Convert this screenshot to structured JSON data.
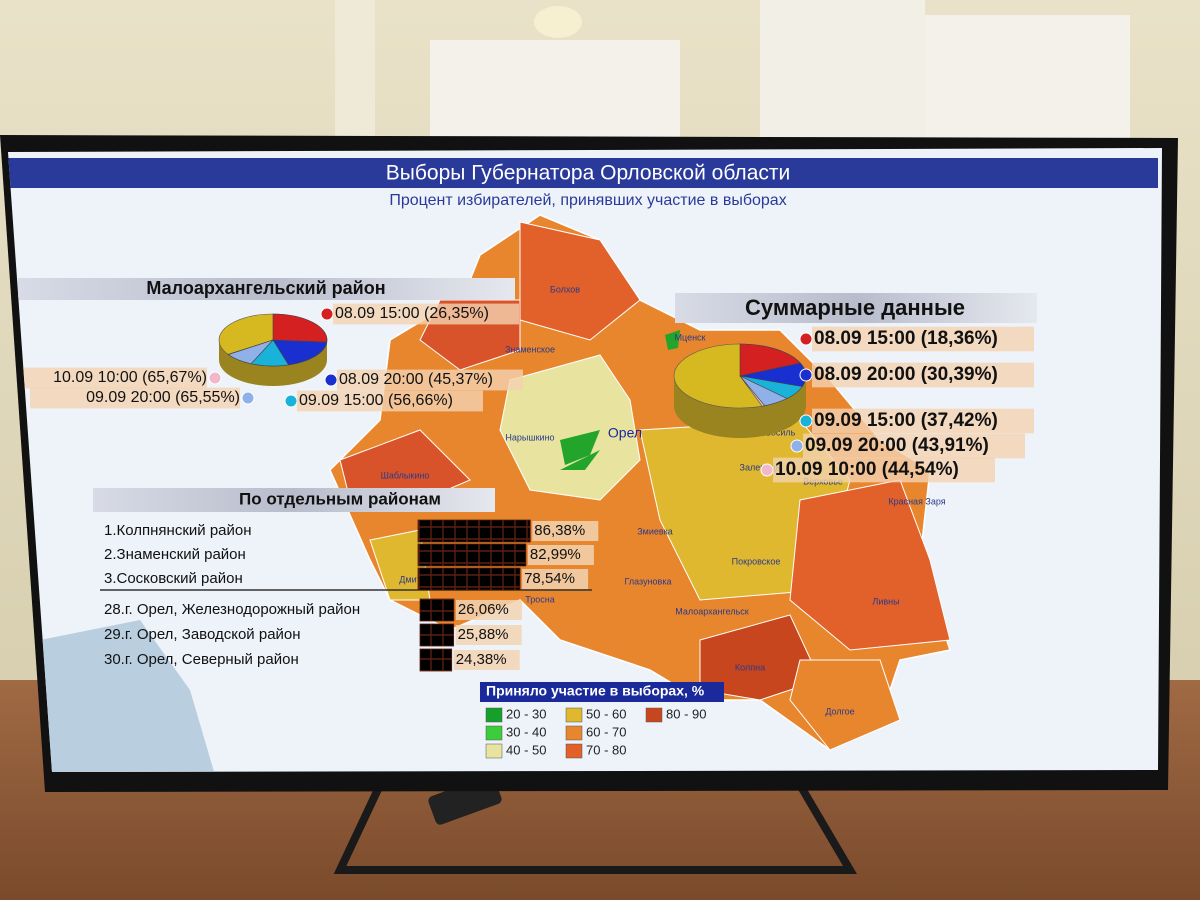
{
  "screen": {
    "title": "Выборы Губернатора Орловской области",
    "subtitle": "Процент избирателей, принявших участие в выборах"
  },
  "district_panel": {
    "title": "Малоархангельский район",
    "items": [
      {
        "time": "08.09 15:00",
        "label": "(26,35%)",
        "value": 26.35,
        "color": "#d42020"
      },
      {
        "time": "08.09 20:00",
        "label": "(45,37%)",
        "value": 45.37,
        "color": "#1a2fd0"
      },
      {
        "time": "09.09 15:00",
        "label": "(56,66%)",
        "value": 56.66,
        "color": "#19b3d9"
      },
      {
        "time": "09.09 20:00",
        "label": "(65,55%)",
        "value": 65.55,
        "color": "#8fb0e8"
      },
      {
        "time": "10.09 10:00",
        "label": "(65,67%)",
        "value": 65.67,
        "color": "#f0b8c8"
      }
    ]
  },
  "summary_panel": {
    "title": "Суммарные данные",
    "items": [
      {
        "time": "08.09 15:00",
        "label": "(18,36%)",
        "value": 18.36,
        "color": "#d42020"
      },
      {
        "time": "08.09 20:00",
        "label": "(30,39%)",
        "value": 30.39,
        "color": "#1a2fd0"
      },
      {
        "time": "09.09 15:00",
        "label": "(37,42%)",
        "value": 37.42,
        "color": "#19b3d9"
      },
      {
        "time": "09.09 20:00",
        "label": "(43,91%)",
        "value": 43.91,
        "color": "#8fb0e8"
      },
      {
        "time": "10.09 10:00",
        "label": "(44,54%)",
        "value": 44.54,
        "color": "#f0b8c8"
      }
    ]
  },
  "ranking_panel": {
    "title": "По отдельным районам",
    "top": [
      {
        "name": "1.Колпнянский район",
        "value": 86.38,
        "label": "86,38%",
        "color": "#d9532a"
      },
      {
        "name": "2.Знаменский район",
        "value": 82.99,
        "label": "82,99%",
        "color": "#d9532a"
      },
      {
        "name": "3.Сосковский район",
        "value": 78.54,
        "label": "78,54%",
        "color": "#d9532a"
      }
    ],
    "bottom": [
      {
        "name": "28.г. Орел, Железнодорожный район",
        "value": 26.06,
        "label": "26,06%",
        "color": "#22a52a"
      },
      {
        "name": "29.г. Орел, Заводской район",
        "value": 25.88,
        "label": "25,88%",
        "color": "#22a52a"
      },
      {
        "name": "30.г. Орел, Северный район",
        "value": 24.38,
        "label": "24,38%",
        "color": "#22a52a"
      }
    ]
  },
  "legend": {
    "title": "Приняло участие в выборах, %",
    "items": [
      {
        "label": "20 - 30",
        "color": "#14a02a"
      },
      {
        "label": "30 - 40",
        "color": "#3ccc3c"
      },
      {
        "label": "40 - 50",
        "color": "#e8e4a0"
      },
      {
        "label": "50 - 60",
        "color": "#e0b830"
      },
      {
        "label": "60 - 70",
        "color": "#e8862e"
      },
      {
        "label": "70 - 80",
        "color": "#e2602a"
      },
      {
        "label": "80 - 90",
        "color": "#c8461e"
      }
    ]
  },
  "map_labels": [
    "Болхов",
    "Мценск",
    "Знаменское",
    "Нарышкино",
    "Орел",
    "Шаблыкино",
    "Сосково",
    "Дмит",
    "Тросна",
    "Глазуновка",
    "Змиевка",
    "Покровское",
    "Малоархангельск",
    "Колпна",
    "Долгое",
    "Ливны",
    "Красная Заря",
    "Верховье",
    "Залегощь",
    "Новосиль"
  ]
}
